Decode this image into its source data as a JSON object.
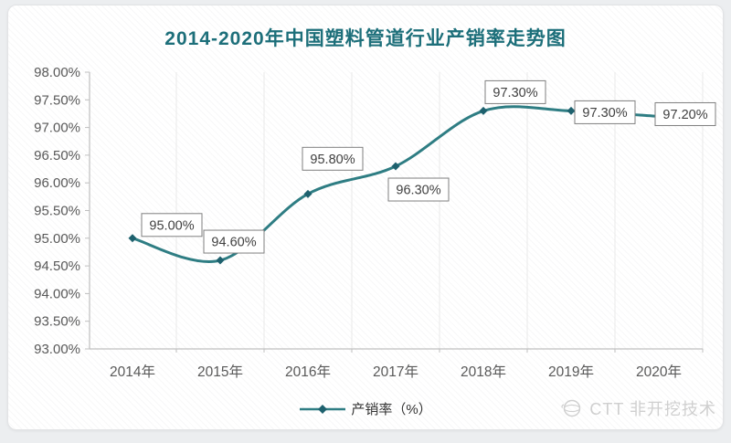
{
  "title": {
    "text": "2014-2020年中国塑料管道行业产销率走势图",
    "color": "#1d6f7a"
  },
  "chart_data": {
    "type": "line",
    "title": "2014-2020年中国塑料管道行业产销率走势图",
    "categories": [
      "2014年",
      "2015年",
      "2016年",
      "2017年",
      "2018年",
      "2019年",
      "2020年"
    ],
    "series": [
      {
        "name": "产销率（%）",
        "values": [
          95.0,
          94.6,
          95.8,
          96.3,
          97.3,
          97.3,
          97.2
        ]
      }
    ],
    "data_labels": [
      "95.00%",
      "94.60%",
      "95.80%",
      "96.30%",
      "97.30%",
      "97.30%",
      "97.20%"
    ],
    "y_tick_labels": [
      "98.00%",
      "97.50%",
      "97.00%",
      "96.50%",
      "96.00%",
      "95.50%",
      "95.00%",
      "94.50%",
      "94.00%",
      "93.50%",
      "93.00%"
    ],
    "ylim": [
      93,
      98
    ],
    "y_step": 0.5,
    "xlabel": "",
    "ylabel": "",
    "grid": "vertical-faint",
    "legend_position": "bottom-center",
    "marker_shape": "diamond",
    "line_color": "#2e7d83",
    "marker_color": "#1e616e",
    "axis_color": "#bfbfbf",
    "gridline_color": "#e9e9e9",
    "tick_label_color": "#595959",
    "data_label_color": "#404040",
    "data_label_border": "#7f7f7f"
  },
  "legend": {
    "label": "产销率（%）"
  },
  "watermark": {
    "text": "CTT 非开挖技术",
    "icon": "globe-logo-icon",
    "color": "#cfcfcf"
  }
}
